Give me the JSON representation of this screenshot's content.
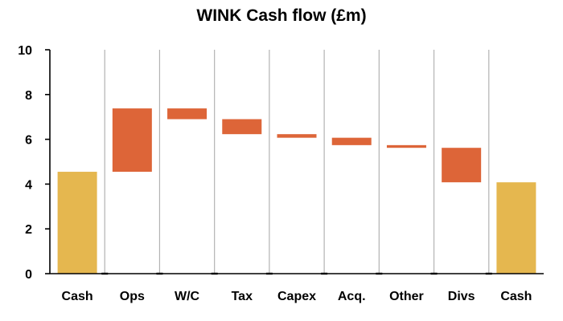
{
  "chart_data": {
    "type": "bar",
    "subtype": "waterfall",
    "title": "WINK Cash flow (£m)",
    "xlabel": "",
    "ylabel": "",
    "ylim": [
      0,
      10
    ],
    "yticks": [
      "0",
      "2",
      "4",
      "6",
      "8",
      "10"
    ],
    "grid": "vertical",
    "legend": "none",
    "categories": [
      "Cash",
      "Ops",
      "W/C",
      "Tax",
      "Capex",
      "Acq.",
      "Other",
      "Divs",
      "Cash"
    ],
    "bars": [
      {
        "category": "Cash",
        "kind": "total",
        "start": 0,
        "end": 4.55
      },
      {
        "category": "Ops",
        "kind": "change",
        "start": 4.55,
        "end": 7.38
      },
      {
        "category": "W/C",
        "kind": "change",
        "start": 7.38,
        "end": 6.9
      },
      {
        "category": "Tax",
        "kind": "change",
        "start": 6.9,
        "end": 6.23
      },
      {
        "category": "Capex",
        "kind": "change",
        "start": 6.23,
        "end": 6.07
      },
      {
        "category": "Acq.",
        "kind": "change",
        "start": 6.07,
        "end": 5.74
      },
      {
        "category": "Other",
        "kind": "change",
        "start": 5.74,
        "end": 5.62
      },
      {
        "category": "Divs",
        "kind": "change",
        "start": 5.62,
        "end": 4.08
      },
      {
        "category": "Cash",
        "kind": "total",
        "start": 0,
        "end": 4.08
      }
    ],
    "colors": {
      "total": "#e5b74f",
      "change": "#dd6538",
      "gridline": "#b3b3b3",
      "axis": "#000000"
    }
  }
}
